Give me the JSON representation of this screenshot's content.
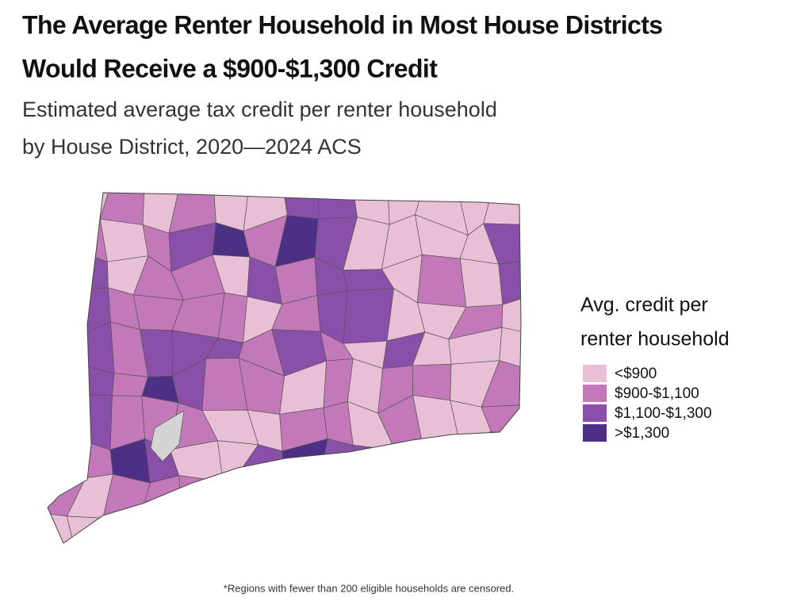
{
  "header": {
    "title": [
      "The Average Renter Household in Most House Districts",
      "Would Receive a $900-$1,300 Credit"
    ],
    "subtitle": [
      "Estimated average tax credit per renter household",
      "by House District, 2020—2024 ACS"
    ]
  },
  "legend": {
    "title": [
      "Avg. credit per",
      "renter household"
    ],
    "items": [
      {
        "label": "<$900",
        "color": "#e8bfd4"
      },
      {
        "label": "$900-$1,100",
        "color": "#c379b9"
      },
      {
        "label": "$1,100-$1,300",
        "color": "#8a4fa8"
      },
      {
        "label": ">$1,300",
        "color": "#4e2f86"
      }
    ]
  },
  "footnote": "*Regions with fewer than 200 eligible households are censored."
}
